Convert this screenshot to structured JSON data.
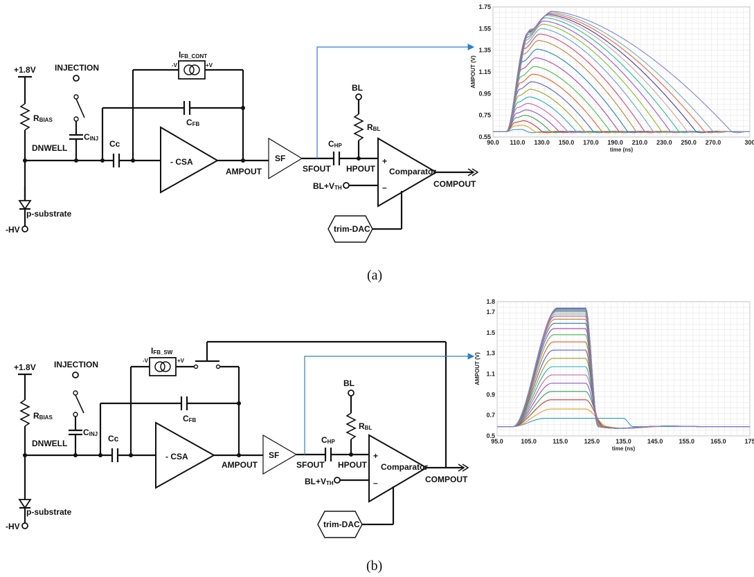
{
  "panels": [
    {
      "id": "a",
      "caption": "(a)",
      "labels": {
        "vdd": "+1.8V",
        "rbias_main": "R",
        "rbias_sub": "BIAS",
        "injection": "INJECTION",
        "cinj_main": "C",
        "cinj_sub": "INJ",
        "dnwell": "DNWELL",
        "psub": "p-substrate",
        "hv": "-HV",
        "cc": "Cc",
        "csa": "- CSA",
        "ifb_main": "I",
        "ifb_sub": "FB_CONT",
        "minus_v": "-V",
        "plus_v": "+V",
        "cfb_main": "C",
        "cfb_sub": "FB",
        "ampout": "AMPOUT",
        "sf": "SF",
        "sfout": "SFOUT",
        "chp_main": "C",
        "chp_sub": "HP",
        "hpout": "HPOUT",
        "bl": "BL",
        "rbl_main": "R",
        "rbl_sub": "BL",
        "plus": "+",
        "minus": "–",
        "comparator": "Comparator",
        "compout": "COMPOUT",
        "blvth_main": "BL+V",
        "blvth_sub": "TH",
        "trimdac": "trim-DAC"
      }
    },
    {
      "id": "b",
      "caption": "(b)",
      "labels": {
        "vdd": "+1.8V",
        "rbias_main": "R",
        "rbias_sub": "BIAS",
        "injection": "INJECTION",
        "cinj_main": "C",
        "cinj_sub": "INJ",
        "dnwell": "DNWELL",
        "psub": "p-substrate",
        "hv": "-HV",
        "cc": "Cc",
        "csa": "- CSA",
        "ifb_main": "I",
        "ifb_sub": "FB_SW",
        "minus_v": "-V",
        "plus_v": "+V",
        "cfb_main": "C",
        "cfb_sub": "FB",
        "ampout": "AMPOUT",
        "sf": "SF",
        "sfout": "SFOUT",
        "chp_main": "C",
        "chp_sub": "HP",
        "hpout": "HPOUT",
        "bl": "BL",
        "rbl_main": "R",
        "rbl_sub": "BL",
        "plus": "+",
        "minus": "–",
        "comparator": "Comparator",
        "compout": "COMPOUT",
        "blvth_main": "BL+V",
        "blvth_sub": "TH",
        "trimdac": "trim-DAC"
      }
    }
  ],
  "chart_data": [
    {
      "type": "line",
      "ylabel": "AMPOUT (V)",
      "xlabel": "time (ns)",
      "xlim": [
        90,
        300
      ],
      "ylim": [
        0.55,
        1.75
      ],
      "x_ticks": [
        "90.0",
        "110.0",
        "130.0",
        "150.0",
        "170.0",
        "190.0",
        "210.0",
        "230.0",
        "250.0",
        "270.0",
        "300"
      ],
      "y_ticks": [
        "0.55",
        "0.75",
        "0.95",
        "1.15",
        "1.35",
        "1.55",
        "1.75"
      ],
      "baseline": 0.6,
      "rise_start": 101,
      "grid": true,
      "series_count": 24,
      "colors": [
        "#2a9fd6",
        "#e8a020",
        "#d03030",
        "#30a050",
        "#9050c0",
        "#d060a0",
        "#20b0b0",
        "#a0a020",
        "#5060d0",
        "#e06020",
        "#40c040",
        "#b040b0",
        "#2080c0",
        "#c08030",
        "#e04060",
        "#60a0e0",
        "#80c020",
        "#a050e0",
        "#20c090",
        "#d0a0a0",
        "#4040a0",
        "#f06040",
        "#70b0a0",
        "#8080e0"
      ],
      "peaks": [
        0.62,
        0.66,
        0.7,
        0.75,
        0.8,
        0.86,
        0.92,
        0.99,
        1.06,
        1.13,
        1.2,
        1.28,
        1.36,
        1.44,
        1.5,
        1.55,
        1.59,
        1.62,
        1.65,
        1.67,
        1.68,
        1.69,
        1.7,
        1.71
      ],
      "fall_ends": [
        118,
        124,
        130,
        137,
        144,
        151,
        158,
        165,
        172,
        179,
        186,
        193,
        200,
        207,
        214,
        221,
        228,
        235,
        242,
        249,
        256,
        263,
        270,
        285
      ]
    },
    {
      "type": "line",
      "ylabel": "AMPOUT (V)",
      "xlabel": "time (ns)",
      "xlim": [
        95,
        175
      ],
      "ylim": [
        0.5,
        1.8
      ],
      "x_ticks": [
        "95.0",
        "105.0",
        "115.0",
        "125.0",
        "135.0",
        "145.0",
        "155.0",
        "165.0",
        "175"
      ],
      "y_ticks": [
        "0.5",
        "0.7",
        "0.9",
        "1.1",
        "1.3",
        "1.5",
        "1.7",
        "1.8"
      ],
      "baseline": 0.59,
      "rise_start": 100,
      "grid": true,
      "series_count": 24,
      "colors": [
        "#2a9fd6",
        "#e8a020",
        "#d03030",
        "#30a050",
        "#9050c0",
        "#d060a0",
        "#20b0b0",
        "#a0a020",
        "#5060d0",
        "#e06020",
        "#40c040",
        "#b040b0",
        "#2080c0",
        "#c08030",
        "#e04060",
        "#60a0e0",
        "#80c020",
        "#a050e0",
        "#20c090",
        "#d0a0a0",
        "#4040a0",
        "#f06040",
        "#70b0a0",
        "#8080e0"
      ],
      "peaks": [
        0.67,
        0.76,
        0.85,
        0.93,
        1.01,
        1.09,
        1.17,
        1.25,
        1.33,
        1.41,
        1.48,
        1.54,
        1.59,
        1.63,
        1.66,
        1.68,
        1.7,
        1.71,
        1.72,
        1.73,
        1.73,
        1.74,
        1.74,
        1.74
      ],
      "fall_ends": [
        138,
        130,
        129,
        128.5,
        128,
        128,
        127.5,
        127.5,
        127,
        127,
        127,
        127,
        127,
        127,
        127,
        127,
        127,
        127,
        127,
        127,
        127,
        127,
        127,
        127
      ]
    }
  ]
}
